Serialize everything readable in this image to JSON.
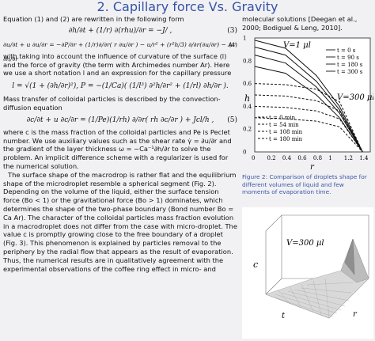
{
  "title": "2. Capillary force Vs. Gravity",
  "left_paragraphs": {
    "intro": "Equation (1) and (2) are rewritten in the following form",
    "eq3": "∂h/∂t + (1/r) ∂(rhu)/∂r = −J/ ,",
    "eq3_num": "(3)",
    "eq4": "∂u/∂t + u ∂u/∂r = −∂P/∂r + (1/r)∂/∂r( r ∂u/∂r ) − u/r² + (r²h/3) ∂/∂r(∂u/∂r) − Ar ∂h/∂r",
    "eq4_num": "(4)",
    "p1": "with taking into account the influence of curvature of the surface (l) and the force of gravity (the term with Archimedes number Ar). Here we use a short notation l and an expression for the capillary pressure",
    "eq_l": "l = √(1 + (∂h/∂r)²),  P = −(1/Ca)( (1/l³) ∂²h/∂r² + (1/rl) ∂h/∂r ).",
    "p2": "Mass transfer of colloidal particles is described by the convection-diffusion equation",
    "eq5": "∂c/∂t + u ∂c/∂r = (1/Pe)(1/rh) ∂/∂r( rh ∂c/∂r ) + Jcl/h ,",
    "eq5_num": "(5)",
    "p3": "where c is the mass fraction of the colloidal particles and Pe is Peclet number. We use auxiliary values such as the shear rate γ̇ = ∂u/∂r and the gradient of the layer thickness ω = −Ca⁻¹∂h/∂r to solve the problem. An implicit difference scheme with a regularizer is used for the numerical solution.",
    "p4": "The surface shape of the macrodrop is rather flat and the equilibrium shape of the microdroplet resemble a spherical segment (Fig. 2). Depending on the volume of the liquid, either the surface tension force (Bo < 1) or the gravitational force (Bo > 1) dominates, which determines the shape of the two-phase boundary (Bond number Bo = Ca Ar). The character of the colloidal particles mass fraction evolution in a macrodroplet does not differ from the case with micro-droplet. The value c is promptly growing close to the free boundary of a droplet (Fig. 3). This phenomenon is explained by particles removal to the periphery by the radial flow that appears as the result of evaporation. Thus, the numerical results are in qualitatively agreement with the experimental observations of the coffee ring effect in micro- and"
  },
  "right_text": "molecular solutions [Deegan et al., 2000; Bodiguel & Leng, 2010].",
  "figure2": {
    "caption": "Figure 2: Comparison of droplets shape for different volumes of liquid and few moments of evaporation time.",
    "label_small": "V=1 μl",
    "label_large": "V=300 μl",
    "xlabel": "r",
    "ylabel": "h",
    "legend_small": [
      "t = 0 s",
      "t = 90 s",
      "t = 180 s",
      "t = 300 s"
    ],
    "legend_large": [
      "t = 0 min",
      "t = 54 min",
      "t = 108 min",
      "t = 180 min"
    ]
  },
  "figure3": {
    "label": "V=300 μl",
    "xlabel": "r",
    "ylabel": "c",
    "tlabel": "t"
  },
  "chart_data": [
    {
      "type": "line",
      "title": "",
      "xlabel": "r",
      "ylabel": "h",
      "xlim": [
        0,
        1.5
      ],
      "ylim": [
        0,
        1
      ],
      "x_ticks": [
        "0",
        "0.2",
        "0.4",
        "0.6",
        "0.8",
        "1",
        "1.2",
        "1.4"
      ],
      "y_ticks": [
        "0",
        "0.2",
        "0.4",
        "0.6",
        "0.8",
        "1"
      ],
      "series": [
        {
          "name": "t = 0 s",
          "group": "V=1 μl",
          "style": "solid",
          "x": [
            0,
            0.4,
            0.8,
            1.1,
            1.4
          ],
          "y": [
            0.98,
            0.91,
            0.67,
            0.4,
            0.0
          ]
        },
        {
          "name": "t = 90 s",
          "group": "V=1 μl",
          "style": "solid",
          "x": [
            0,
            0.4,
            0.8,
            1.1,
            1.4
          ],
          "y": [
            0.92,
            0.85,
            0.62,
            0.37,
            0.0
          ]
        },
        {
          "name": "t = 180 s",
          "group": "V=1 μl",
          "style": "solid",
          "x": [
            0,
            0.4,
            0.8,
            1.1,
            1.4
          ],
          "y": [
            0.85,
            0.78,
            0.57,
            0.34,
            0.0
          ]
        },
        {
          "name": "t = 300 s",
          "group": "V=1 μl",
          "style": "solid",
          "x": [
            0,
            0.4,
            0.8,
            1.1,
            1.4
          ],
          "y": [
            0.75,
            0.69,
            0.5,
            0.3,
            0.0
          ]
        },
        {
          "name": "t = 0 min",
          "group": "V=300 μl",
          "style": "dashed",
          "x": [
            0,
            0.4,
            0.8,
            1.1,
            1.4
          ],
          "y": [
            0.6,
            0.59,
            0.55,
            0.44,
            0.0
          ]
        },
        {
          "name": "t = 54 min",
          "group": "V=300 μl",
          "style": "dashed",
          "x": [
            0,
            0.4,
            0.8,
            1.1,
            1.4
          ],
          "y": [
            0.5,
            0.49,
            0.45,
            0.36,
            0.0
          ]
        },
        {
          "name": "t = 108 min",
          "group": "V=300 μl",
          "style": "dashed",
          "x": [
            0,
            0.4,
            0.8,
            1.1,
            1.4
          ],
          "y": [
            0.4,
            0.39,
            0.36,
            0.29,
            0.0
          ]
        },
        {
          "name": "t = 180 min",
          "group": "V=300 μl",
          "style": "dashed",
          "x": [
            0,
            0.4,
            0.8,
            1.1,
            1.4
          ],
          "y": [
            0.3,
            0.29,
            0.27,
            0.22,
            0.0
          ]
        }
      ]
    }
  ],
  "colors": {
    "title": "#3552a6",
    "caption": "#3a56a8",
    "background": "#f1f1f4"
  }
}
